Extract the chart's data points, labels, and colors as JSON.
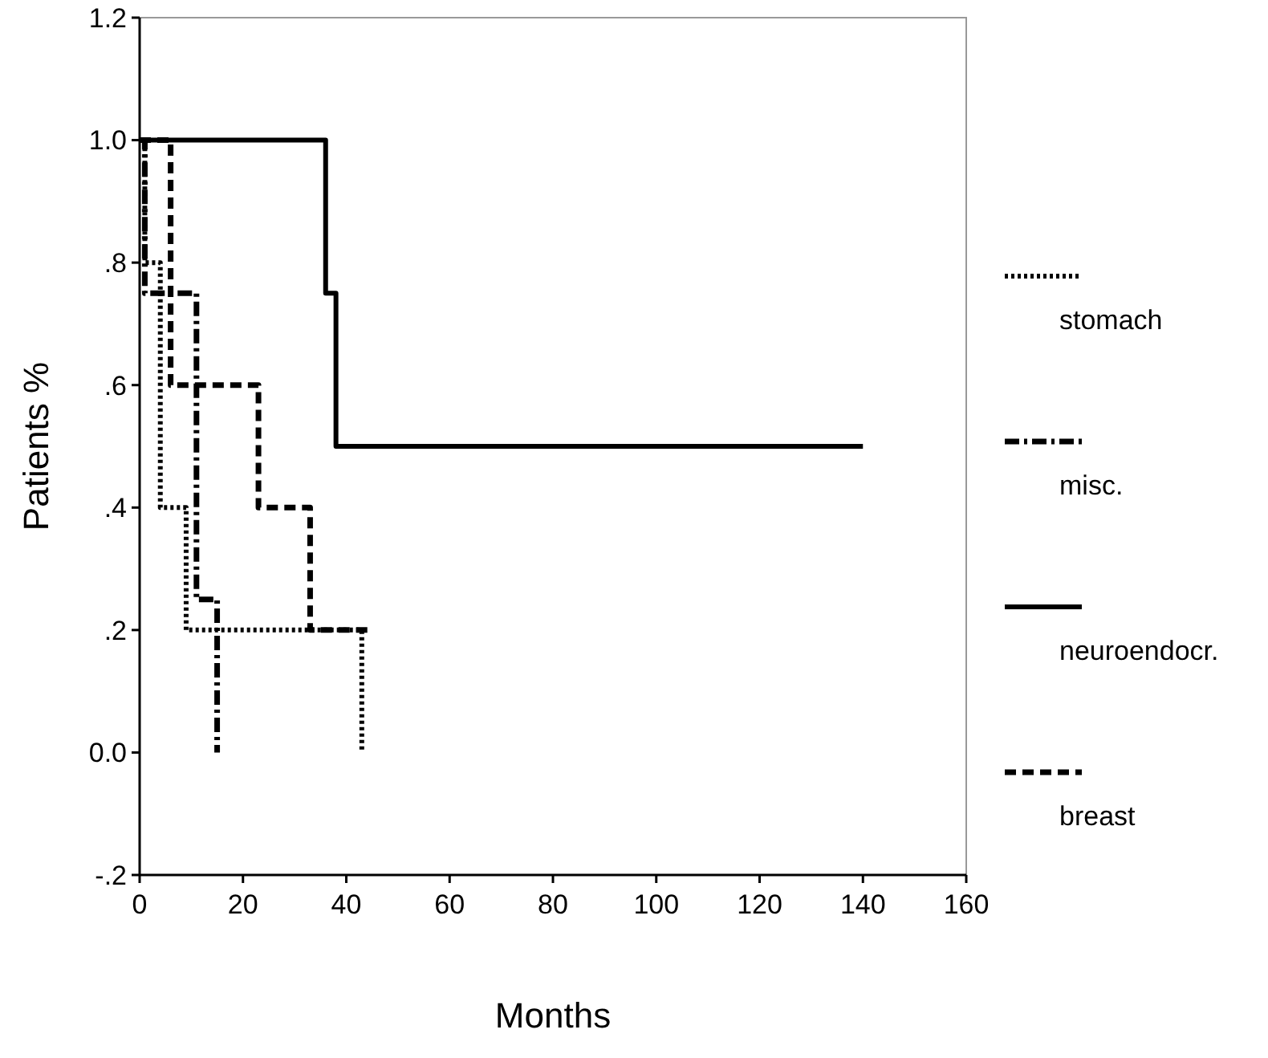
{
  "chart_data": {
    "type": "step",
    "xlabel": "Months",
    "ylabel": "Patients %",
    "xlim": [
      0,
      160
    ],
    "xticks": [
      0,
      20,
      40,
      60,
      80,
      100,
      120,
      140,
      160
    ],
    "ylim": [
      -0.2,
      1.2
    ],
    "yticks": [
      {
        "value": 1.2,
        "label": "1.2"
      },
      {
        "value": 1.0,
        "label": "1.0"
      },
      {
        "value": 0.8,
        "label": ".8"
      },
      {
        "value": 0.6,
        "label": ".6"
      },
      {
        "value": 0.4,
        "label": ".4"
      },
      {
        "value": 0.2,
        "label": ".2"
      },
      {
        "value": 0,
        "label": "0.0"
      },
      {
        "value": -0.2,
        "label": "-.2"
      }
    ],
    "grid": false,
    "legend": "right",
    "series": [
      {
        "name": "stomach",
        "color": "#000000",
        "line_style": "dotted",
        "x": [
          0,
          1,
          4,
          9,
          43
        ],
        "values": [
          1,
          0.8,
          0.4,
          0.2,
          0
        ]
      },
      {
        "name": "misc.",
        "color": "#000000",
        "line_style": "dashdot",
        "x": [
          0,
          1,
          11,
          15
        ],
        "values": [
          1,
          0.75,
          0.25,
          0
        ]
      },
      {
        "name": "neuroendocr.",
        "color": "#000000",
        "line_style": "solid",
        "x": [
          0,
          36,
          38,
          140
        ],
        "values": [
          1,
          0.75,
          0.5,
          0.5
        ]
      },
      {
        "name": "breast",
        "color": "#000000",
        "line_style": "dashed",
        "x": [
          0,
          6,
          23,
          33,
          45
        ],
        "values": [
          1,
          0.6,
          0.4,
          0.2,
          0.2
        ]
      }
    ]
  }
}
